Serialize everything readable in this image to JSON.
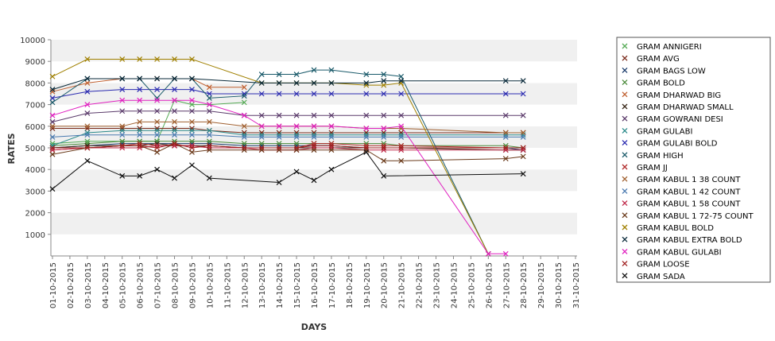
{
  "chart_data": {
    "type": "line",
    "xlabel": "DAYS",
    "ylabel": "RATES",
    "ylim": [
      0,
      10000
    ],
    "yticks": [
      1000,
      2000,
      3000,
      4000,
      5000,
      6000,
      7000,
      8000,
      9000,
      10000
    ],
    "grid": "alternating horizontal bands",
    "legend_position": "right",
    "categories": [
      "01-10-2015",
      "02-10-2015",
      "03-10-2015",
      "04-10-2015",
      "05-10-2015",
      "06-10-2015",
      "07-10-2015",
      "08-10-2015",
      "09-10-2015",
      "10-10-2015",
      "11-10-2015",
      "12-10-2015",
      "13-10-2015",
      "14-10-2015",
      "15-10-2015",
      "16-10-2015",
      "17-10-2015",
      "18-10-2015",
      "19-10-2015",
      "20-10-2015",
      "21-10-2015",
      "22-10-2015",
      "23-10-2015",
      "24-10-2015",
      "25-10-2015",
      "26-10-2015",
      "27-10-2015",
      "28-10-2015",
      "29-10-2015",
      "30-10-2015",
      "31-10-2015"
    ],
    "series": [
      {
        "name": "GRAM ANNIGERI",
        "color": "#55aa55",
        "values": [
          5200,
          null,
          5300,
          null,
          5300,
          5300,
          5300,
          7200,
          7000,
          7000,
          null,
          7100,
          null,
          null,
          null,
          null,
          null,
          null,
          null,
          null,
          null,
          null,
          null,
          null,
          null,
          null,
          null,
          null,
          null,
          null,
          null
        ]
      },
      {
        "name": "GRAM AVG",
        "color": "#7a2a1a",
        "values": [
          5900,
          null,
          5900,
          null,
          5900,
          5900,
          5900,
          5900,
          5900,
          5800,
          null,
          5700,
          5700,
          5700,
          5700,
          5700,
          5700,
          null,
          5700,
          5700,
          5700,
          null,
          null,
          null,
          null,
          null,
          5700,
          5700,
          null,
          null,
          null
        ]
      },
      {
        "name": "GRAM BAGS LOW",
        "color": "#1a3a6a",
        "values": [
          5000,
          null,
          5100,
          null,
          5200,
          5200,
          5200,
          5200,
          5200,
          5200,
          null,
          5100,
          5100,
          5100,
          5100,
          5100,
          5100,
          null,
          5000,
          5000,
          5000,
          null,
          null,
          null,
          null,
          null,
          5000,
          4900,
          null,
          null,
          null
        ]
      },
      {
        "name": "GRAM BOLD",
        "color": "#4a8a3a",
        "values": [
          5100,
          null,
          5200,
          null,
          5300,
          5300,
          5300,
          5300,
          5300,
          5300,
          null,
          5200,
          5200,
          5200,
          5200,
          5200,
          5200,
          null,
          5200,
          5200,
          5100,
          null,
          null,
          null,
          null,
          null,
          5100,
          5000,
          null,
          null,
          null
        ]
      },
      {
        "name": "GRAM DHARWAD BIG",
        "color": "#c06030",
        "values": [
          7600,
          null,
          8000,
          null,
          8200,
          8200,
          8200,
          8200,
          8200,
          7800,
          null,
          7800,
          null,
          null,
          null,
          null,
          null,
          null,
          null,
          null,
          null,
          null,
          null,
          null,
          null,
          null,
          null,
          null,
          null,
          null,
          null
        ]
      },
      {
        "name": "GRAM DHARWAD SMALL",
        "color": "#3a2a1a",
        "values": [
          5000,
          null,
          5100,
          null,
          5100,
          5100,
          5200,
          5100,
          5100,
          5100,
          null,
          5000,
          5000,
          5000,
          5000,
          5000,
          5000,
          null,
          5000,
          5000,
          5000,
          null,
          null,
          null,
          null,
          null,
          4900,
          4900,
          null,
          null,
          null
        ]
      },
      {
        "name": "GRAM GOWRANI DESI",
        "color": "#5a3a6a",
        "values": [
          6200,
          null,
          6600,
          null,
          6700,
          6700,
          6700,
          6700,
          6700,
          6700,
          null,
          6500,
          6500,
          6500,
          6500,
          6500,
          6500,
          null,
          6500,
          6500,
          6500,
          null,
          null,
          null,
          null,
          null,
          6500,
          6500,
          null,
          null,
          null
        ]
      },
      {
        "name": "GRAM GULABI",
        "color": "#2a8a8a",
        "values": [
          5100,
          null,
          5700,
          null,
          5800,
          5800,
          5800,
          5800,
          5800,
          5800,
          null,
          5600,
          5600,
          5600,
          5600,
          5600,
          5600,
          null,
          5600,
          5600,
          5600,
          null,
          null,
          null,
          null,
          null,
          5600,
          5600,
          null,
          null,
          null
        ]
      },
      {
        "name": "GRAM GULABI BOLD",
        "color": "#2a2ab0",
        "values": [
          7300,
          null,
          7600,
          null,
          7700,
          7700,
          7700,
          7700,
          7700,
          7500,
          null,
          7500,
          7500,
          7500,
          7500,
          7500,
          7500,
          null,
          7500,
          7500,
          7500,
          null,
          null,
          null,
          null,
          null,
          7500,
          7500,
          null,
          null,
          null
        ]
      },
      {
        "name": "GRAM HIGH",
        "color": "#1a5a6a",
        "values": [
          7100,
          null,
          8200,
          null,
          8200,
          8200,
          7300,
          8200,
          8200,
          7300,
          null,
          7400,
          8400,
          8400,
          8400,
          8600,
          8600,
          null,
          8400,
          8400,
          8300,
          null,
          null,
          null,
          null,
          100,
          null,
          null,
          null,
          null,
          null
        ]
      },
      {
        "name": "GRAM JJ",
        "color": "#b02a2a",
        "values": [
          4900,
          null,
          5000,
          null,
          5100,
          5200,
          5100,
          5100,
          5100,
          5000,
          null,
          5000,
          5000,
          5000,
          5000,
          5200,
          5200,
          null,
          5100,
          5100,
          5100,
          null,
          null,
          null,
          null,
          null,
          5000,
          5000,
          null,
          null,
          null
        ]
      },
      {
        "name": "GRAM KABUL 1 38 COUNT",
        "color": "#a06030",
        "values": [
          6000,
          null,
          6000,
          null,
          6000,
          6200,
          6200,
          6200,
          6200,
          6200,
          null,
          6000,
          6000,
          6000,
          6000,
          6000,
          6000,
          null,
          5900,
          5900,
          5900,
          null,
          null,
          null,
          null,
          null,
          5700,
          5700,
          null,
          null,
          null
        ]
      },
      {
        "name": "GRAM KABUL 1 42 COUNT",
        "color": "#4a7ab0",
        "values": [
          5500,
          null,
          5600,
          null,
          5600,
          5600,
          5600,
          5600,
          5600,
          5600,
          null,
          5500,
          5500,
          5500,
          5500,
          5500,
          5500,
          null,
          5500,
          5500,
          5500,
          null,
          null,
          null,
          null,
          null,
          5500,
          5500,
          null,
          null,
          null
        ]
      },
      {
        "name": "GRAM KABUL 1 58 COUNT",
        "color": "#c02a4a",
        "values": [
          4900,
          null,
          5000,
          null,
          5000,
          5000,
          5100,
          5100,
          5100,
          5000,
          null,
          5000,
          4900,
          4900,
          4900,
          5000,
          5000,
          null,
          4900,
          4900,
          4900,
          null,
          null,
          null,
          null,
          null,
          4900,
          4900,
          null,
          null,
          null
        ]
      },
      {
        "name": "GRAM KABUL 1 72-75 COUNT",
        "color": "#6a3a1a",
        "values": [
          4700,
          null,
          5000,
          null,
          5100,
          5100,
          4800,
          5200,
          4800,
          4900,
          null,
          4900,
          4900,
          4900,
          4900,
          4900,
          4900,
          null,
          4900,
          4400,
          4400,
          null,
          null,
          null,
          null,
          null,
          4500,
          4600,
          null,
          null,
          null
        ]
      },
      {
        "name": "GRAM KABUL BOLD",
        "color": "#a08000",
        "values": [
          8300,
          null,
          9100,
          null,
          9100,
          9100,
          9100,
          9100,
          9100,
          null,
          null,
          null,
          8000,
          8000,
          8000,
          8000,
          8000,
          null,
          7900,
          7900,
          8000,
          null,
          null,
          null,
          null,
          100,
          null,
          null,
          null,
          null,
          null
        ]
      },
      {
        "name": "GRAM KABUL EXTRA BOLD",
        "color": "#0a2a3a",
        "values": [
          7700,
          null,
          8200,
          null,
          8200,
          8200,
          8200,
          8200,
          8200,
          null,
          null,
          null,
          8000,
          8000,
          8000,
          8000,
          8000,
          null,
          8000,
          8100,
          8100,
          null,
          null,
          null,
          null,
          null,
          8100,
          8100,
          null,
          null,
          null
        ]
      },
      {
        "name": "GRAM KABUL GULABI",
        "color": "#e020c0",
        "values": [
          6500,
          null,
          7000,
          null,
          7200,
          7200,
          7200,
          7200,
          7200,
          7000,
          null,
          6500,
          6000,
          6000,
          6000,
          6000,
          6000,
          null,
          5900,
          5900,
          6000,
          null,
          null,
          null,
          null,
          100,
          100,
          null,
          null,
          null,
          null
        ]
      },
      {
        "name": "GRAM LOOSE",
        "color": "#a02020",
        "values": [
          5000,
          null,
          5000,
          null,
          5100,
          5100,
          5000,
          5200,
          5000,
          5100,
          null,
          5000,
          5000,
          5000,
          5000,
          5100,
          5100,
          null,
          5000,
          5000,
          5000,
          null,
          null,
          null,
          null,
          null,
          5000,
          5000,
          null,
          null,
          null
        ]
      },
      {
        "name": "GRAM SADA",
        "color": "#101010",
        "values": [
          3100,
          null,
          4400,
          null,
          3700,
          3700,
          4000,
          3600,
          4200,
          3600,
          null,
          null,
          null,
          3400,
          3900,
          3500,
          4000,
          null,
          4800,
          3700,
          null,
          null,
          null,
          null,
          null,
          null,
          null,
          3800,
          null,
          null,
          null
        ]
      }
    ]
  }
}
